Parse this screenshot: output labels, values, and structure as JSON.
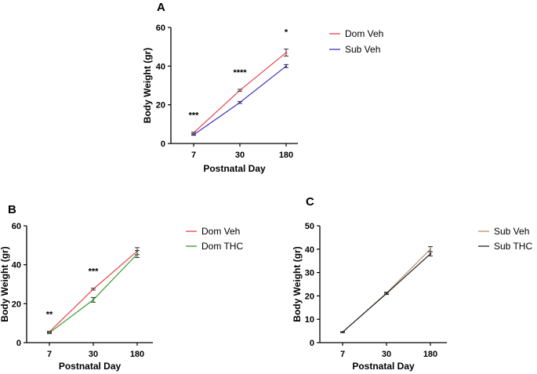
{
  "chart_data": [
    {
      "panel": "A",
      "type": "line",
      "xlabel": "Postnatal Day",
      "ylabel": "Body Weight (gr)",
      "categories": [
        "7",
        "30",
        "180"
      ],
      "ylim": [
        0,
        60
      ],
      "yticks": [
        "0",
        "20",
        "40",
        "60"
      ],
      "series": [
        {
          "name": "Dom Veh",
          "color": "#e8414e",
          "values": [
            5.5,
            27.5,
            47
          ],
          "errors": [
            0.4,
            0.5,
            1.8
          ]
        },
        {
          "name": "Sub Veh",
          "color": "#3a31c8",
          "values": [
            4.5,
            21.2,
            40
          ],
          "errors": [
            0.3,
            0.5,
            0.8
          ]
        }
      ],
      "annotations": [
        "***",
        "****",
        "*"
      ],
      "legend_position": "right"
    },
    {
      "panel": "B",
      "type": "line",
      "xlabel": "Postnatal Day",
      "ylabel": "Body Weight (gr)",
      "categories": [
        "7",
        "30",
        "180"
      ],
      "ylim": [
        0,
        60
      ],
      "yticks": [
        "0",
        "20",
        "40",
        "60"
      ],
      "series": [
        {
          "name": "Dom Veh",
          "color": "#e8414e",
          "values": [
            5.5,
            27.5,
            47
          ],
          "errors": [
            0.4,
            0.5,
            1.8
          ]
        },
        {
          "name": "Dom THC",
          "color": "#3a9a2b",
          "values": [
            5,
            22,
            45.5
          ],
          "errors": [
            0.4,
            1.2,
            1.8
          ]
        }
      ],
      "annotations": [
        "**",
        "***",
        ""
      ],
      "legend_position": "right"
    },
    {
      "panel": "C",
      "type": "line",
      "xlabel": "Postnatal Day",
      "ylabel": "Body Weight (gr)",
      "categories": [
        "7",
        "30",
        "180"
      ],
      "ylim": [
        0,
        50
      ],
      "yticks": [
        "0",
        "10",
        "20",
        "30",
        "40",
        "50"
      ],
      "series": [
        {
          "name": "Sub Veh",
          "color": "#b8946a",
          "values": [
            4.5,
            21.2,
            40
          ],
          "errors": [
            0.2,
            0.4,
            1.1
          ]
        },
        {
          "name": "Sub THC",
          "color": "#222222",
          "values": [
            4.5,
            21,
            38
          ],
          "errors": [
            0.2,
            0.4,
            0.9
          ]
        }
      ],
      "annotations": [
        "",
        "",
        ""
      ],
      "legend_position": "right"
    }
  ]
}
